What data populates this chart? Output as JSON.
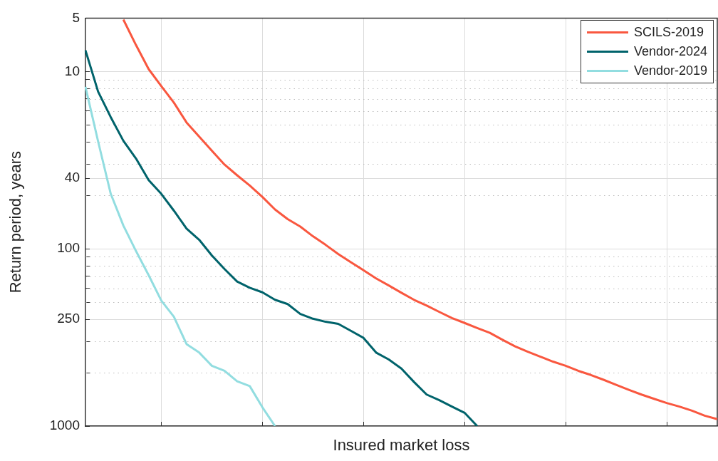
{
  "chart_data": {
    "type": "line",
    "xlabel": "Insured market loss",
    "ylabel": "Return period, years",
    "categories": [
      null,
      null,
      null,
      null,
      null,
      null,
      null,
      null,
      null,
      null,
      null,
      null,
      null,
      null,
      null,
      null,
      null,
      null,
      null,
      null,
      null,
      null,
      null,
      null,
      null,
      null,
      null,
      null,
      null,
      null,
      null,
      null,
      null,
      null,
      null,
      null,
      null,
      null,
      null,
      null,
      null,
      null,
      null,
      null,
      null,
      null,
      null,
      null,
      null,
      null,
      null
    ],
    "series": [
      {
        "name": "SCILS-2019",
        "color": "#f9573f",
        "values": [
          null,
          null,
          null,
          5.1,
          7.1,
          9.7,
          12.1,
          15,
          19.4,
          23.3,
          28,
          33.5,
          38.5,
          44,
          51,
          60,
          68,
          75,
          85,
          95,
          107,
          119,
          132,
          147,
          161,
          177,
          194,
          209,
          227,
          246,
          262,
          280,
          298,
          326,
          355,
          381,
          406,
          433,
          457,
          488,
          515,
          548,
          585,
          624,
          664,
          702,
          741,
          776,
          819,
          873,
          914
        ]
      },
      {
        "name": "Vendor-2024",
        "color": "#00636b",
        "values": [
          7.6,
          13,
          18.1,
          24.6,
          31,
          41,
          49,
          61,
          77,
          89,
          109,
          130,
          153,
          166,
          176,
          194,
          205,
          233,
          248,
          258,
          265,
          290,
          318,
          385,
          421,
          474,
          564,
          664,
          714,
          776,
          841,
          1000,
          null,
          null,
          null,
          null,
          null,
          null,
          null,
          null,
          null,
          null,
          null,
          null,
          null,
          null,
          null,
          null,
          null,
          null,
          null
        ]
      },
      {
        "name": "Vendor-2019",
        "color": "#92dde0",
        "values": [
          12.2,
          24.8,
          49,
          74,
          103,
          141,
          196,
          242,
          345,
          385,
          457,
          488,
          559,
          595,
          783,
          1000,
          null,
          null,
          null,
          null,
          null,
          null,
          null,
          null,
          null,
          null,
          null,
          null,
          null,
          null,
          null,
          null,
          null,
          null,
          null,
          null,
          null,
          null,
          null,
          null,
          null,
          null,
          null,
          null,
          null,
          null,
          null,
          null,
          null,
          null,
          null
        ]
      }
    ],
    "log": "y",
    "ylim": [
      1000,
      5
    ],
    "yticks": [
      5,
      10,
      {
        "value": 11.1,
        "label": null
      },
      {
        "value": 12.5,
        "label": null
      },
      {
        "value": 14.3,
        "label": null
      },
      {
        "value": 16.7,
        "label": null
      },
      {
        "value": 20,
        "label": null
      },
      {
        "value": 25,
        "label": null
      },
      {
        "value": 33.3,
        "label": null
      },
      40,
      {
        "value": 50,
        "label": null
      },
      100,
      {
        "value": 111,
        "label": null
      },
      {
        "value": 125,
        "label": null
      },
      {
        "value": 143,
        "label": null
      },
      {
        "value": 167,
        "label": null
      },
      {
        "value": 200,
        "label": null
      },
      250,
      {
        "value": 333,
        "label": null
      },
      {
        "value": 500,
        "label": null
      },
      1000
    ],
    "tick_labels": "y",
    "grid": true,
    "legend": "top right",
    "marker": "none",
    "line_style": "solid"
  }
}
